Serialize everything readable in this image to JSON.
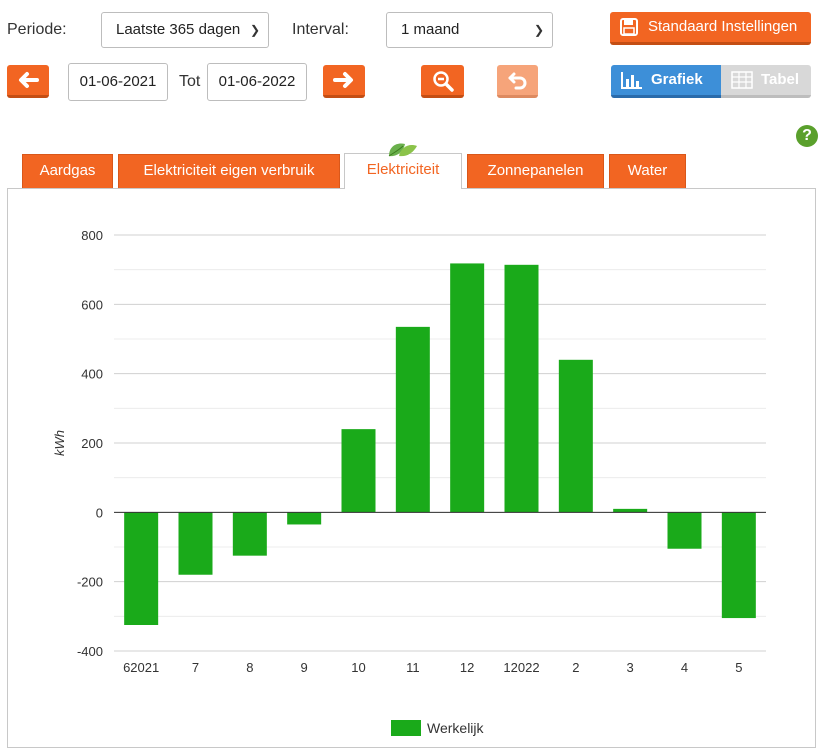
{
  "controls": {
    "periode_label": "Periode:",
    "periode_value": "Laatste 365 dagen",
    "interval_label": "Interval:",
    "interval_value": "1 maand",
    "standard_button": "Standaard Instellingen",
    "start_date": "01-06-2021",
    "tot_label": "Tot",
    "end_date": "01-06-2022",
    "view_grafiek": "Grafiek",
    "view_tabel": "Tabel",
    "help": "?"
  },
  "colors": {
    "accent": "#f26522",
    "active": "#3d8fd8",
    "bars": "#1aaa1a"
  },
  "icons": {
    "prev": "arrow-left-icon",
    "next": "arrow-right-icon",
    "zoom": "zoom-out-icon",
    "reset": "undo-icon",
    "save": "floppy-disk-icon",
    "chart": "bar-chart-icon",
    "table": "table-icon",
    "help": "question-mark-icon",
    "leaf": "leaf-icon"
  },
  "tabs": [
    {
      "label": "Aardgas",
      "active": false
    },
    {
      "label": "Elektriciteit eigen verbruik",
      "active": false
    },
    {
      "label": "Elektriciteit",
      "active": true
    },
    {
      "label": "Zonnepanelen",
      "active": false
    },
    {
      "label": "Water",
      "active": false
    }
  ],
  "chart_data": {
    "type": "bar",
    "ylabel": "kWh",
    "ylim": [
      -400,
      800
    ],
    "yticks": [
      -400,
      -200,
      0,
      200,
      400,
      600,
      800
    ],
    "categories": [
      "62021",
      "7",
      "8",
      "9",
      "10",
      "11",
      "12",
      "12022",
      "2",
      "3",
      "4",
      "5"
    ],
    "series": [
      {
        "name": "Werkelijk",
        "values": [
          -325,
          -180,
          -125,
          -35,
          240,
          535,
          718,
          714,
          440,
          10,
          -105,
          -305
        ]
      }
    ],
    "grid": true,
    "legend": "bottom-center"
  }
}
